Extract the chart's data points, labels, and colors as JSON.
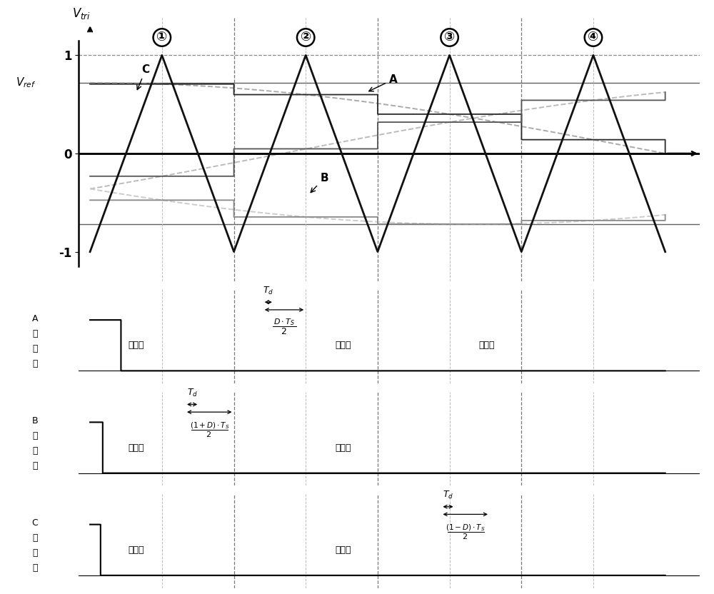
{
  "fig_width": 10.0,
  "fig_height": 8.32,
  "dpi": 100,
  "vref": 0.72,
  "tri_color": "#111111",
  "period_labels": [
    "①",
    "②",
    "③",
    "④"
  ],
  "label_A": "A\n相\n上\n管",
  "label_B": "B\n相\n上\n管",
  "label_C": "C\n相\n上\n管",
  "pos_half": "正半周",
  "neg_half": "负半周"
}
